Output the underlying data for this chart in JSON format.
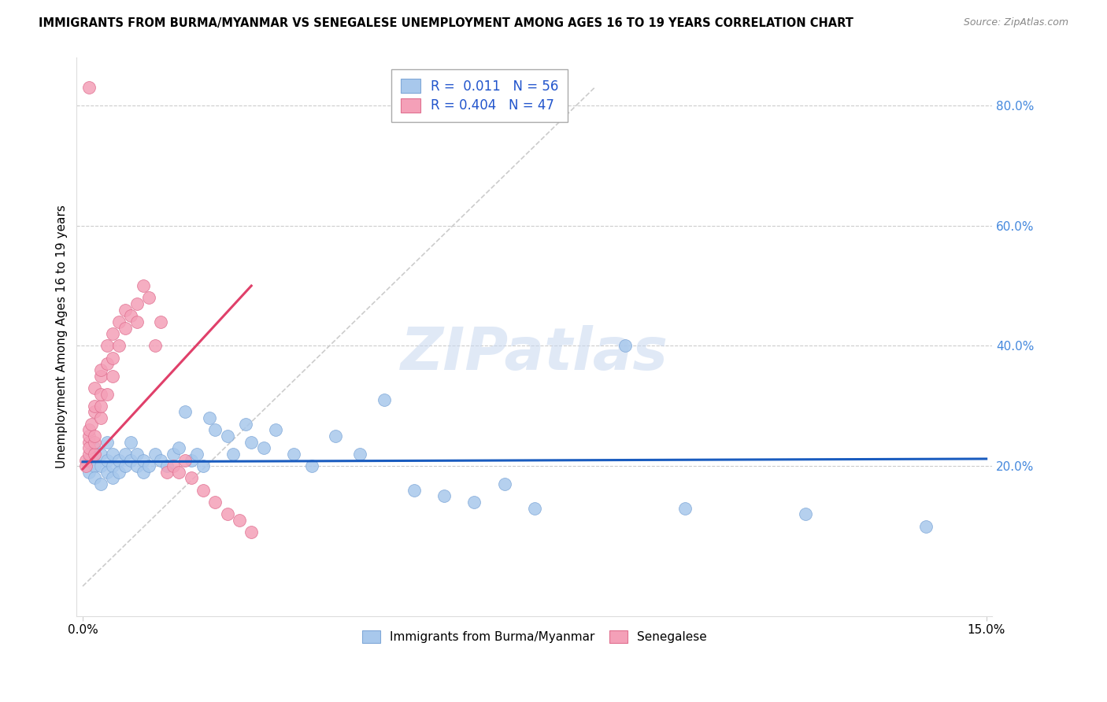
{
  "title": "IMMIGRANTS FROM BURMA/MYANMAR VS SENEGALESE UNEMPLOYMENT AMONG AGES 16 TO 19 YEARS CORRELATION CHART",
  "source": "Source: ZipAtlas.com",
  "ylabel": "Unemployment Among Ages 16 to 19 years",
  "y_tick_values": [
    0.2,
    0.4,
    0.6,
    0.8
  ],
  "y_tick_labels": [
    "20.0%",
    "40.0%",
    "60.0%",
    "80.0%"
  ],
  "xlim": [
    0.0,
    0.15
  ],
  "ylim": [
    -0.05,
    0.88
  ],
  "blue_color": "#a8c8ec",
  "blue_edge": "#80a8d8",
  "pink_color": "#f4a0b8",
  "pink_edge": "#e07090",
  "blue_line_color": "#1a5cbf",
  "pink_line_color": "#e0406a",
  "diag_color": "#cccccc",
  "grid_color": "#cccccc",
  "watermark_color": "#c8d8f0",
  "right_axis_color": "#4488dd",
  "blue_scatter_x": [
    0.001,
    0.001,
    0.002,
    0.002,
    0.002,
    0.003,
    0.003,
    0.003,
    0.004,
    0.004,
    0.004,
    0.005,
    0.005,
    0.005,
    0.006,
    0.006,
    0.007,
    0.007,
    0.008,
    0.008,
    0.009,
    0.009,
    0.01,
    0.01,
    0.011,
    0.012,
    0.013,
    0.014,
    0.015,
    0.016,
    0.017,
    0.018,
    0.019,
    0.02,
    0.021,
    0.022,
    0.024,
    0.025,
    0.027,
    0.028,
    0.03,
    0.032,
    0.035,
    0.038,
    0.042,
    0.046,
    0.05,
    0.055,
    0.06,
    0.065,
    0.07,
    0.075,
    0.09,
    0.1,
    0.12,
    0.14
  ],
  "blue_scatter_y": [
    0.21,
    0.19,
    0.23,
    0.2,
    0.18,
    0.22,
    0.2,
    0.17,
    0.21,
    0.19,
    0.24,
    0.2,
    0.22,
    0.18,
    0.21,
    0.19,
    0.22,
    0.2,
    0.24,
    0.21,
    0.2,
    0.22,
    0.21,
    0.19,
    0.2,
    0.22,
    0.21,
    0.2,
    0.22,
    0.23,
    0.29,
    0.21,
    0.22,
    0.2,
    0.28,
    0.26,
    0.25,
    0.22,
    0.27,
    0.24,
    0.23,
    0.26,
    0.22,
    0.2,
    0.25,
    0.22,
    0.31,
    0.16,
    0.15,
    0.14,
    0.17,
    0.13,
    0.4,
    0.13,
    0.12,
    0.1
  ],
  "pink_scatter_x": [
    0.0005,
    0.0005,
    0.001,
    0.001,
    0.001,
    0.001,
    0.001,
    0.0015,
    0.002,
    0.002,
    0.002,
    0.002,
    0.002,
    0.002,
    0.003,
    0.003,
    0.003,
    0.003,
    0.003,
    0.004,
    0.004,
    0.004,
    0.005,
    0.005,
    0.005,
    0.006,
    0.006,
    0.007,
    0.007,
    0.008,
    0.009,
    0.009,
    0.01,
    0.011,
    0.012,
    0.013,
    0.014,
    0.015,
    0.016,
    0.017,
    0.018,
    0.02,
    0.022,
    0.024,
    0.026,
    0.028,
    0.001
  ],
  "pink_scatter_y": [
    0.21,
    0.2,
    0.22,
    0.24,
    0.23,
    0.25,
    0.26,
    0.27,
    0.22,
    0.24,
    0.25,
    0.29,
    0.3,
    0.33,
    0.28,
    0.3,
    0.32,
    0.35,
    0.36,
    0.32,
    0.37,
    0.4,
    0.35,
    0.38,
    0.42,
    0.4,
    0.44,
    0.43,
    0.46,
    0.45,
    0.44,
    0.47,
    0.5,
    0.48,
    0.4,
    0.44,
    0.19,
    0.2,
    0.19,
    0.21,
    0.18,
    0.16,
    0.14,
    0.12,
    0.11,
    0.09,
    0.83
  ],
  "blue_trend_x": [
    0.0,
    0.15
  ],
  "blue_trend_y": [
    0.207,
    0.212
  ],
  "pink_trend_x": [
    0.0,
    0.028
  ],
  "pink_trend_y": [
    0.195,
    0.5
  ],
  "diag_line_x": [
    0.0,
    0.085
  ],
  "diag_line_y": [
    0.0,
    0.83
  ]
}
